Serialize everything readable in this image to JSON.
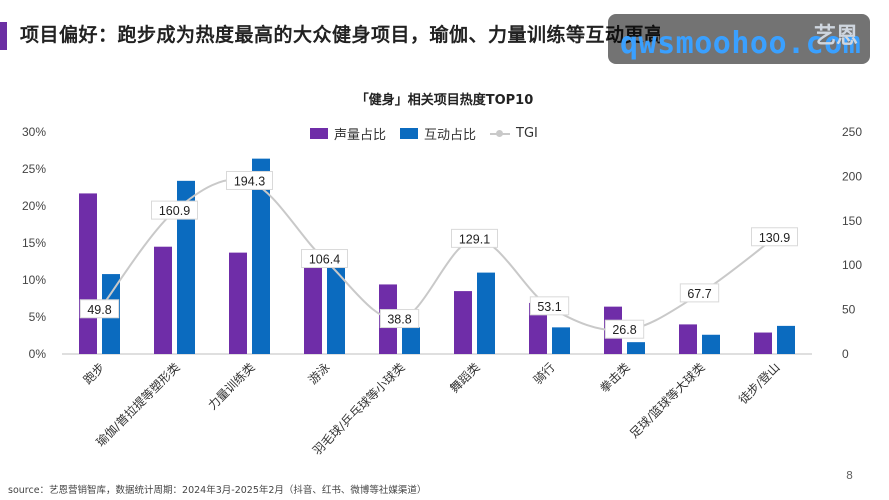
{
  "header": {
    "title": "项目偏好：跑步成为热度最高的大众健身项目，瑜伽、力量训练等互动更高",
    "accent_color": "#6b2fa3",
    "brand_logo": "艺恩",
    "watermark": "qwsmoohoo.com"
  },
  "chart_data": {
    "type": "bar",
    "title": "「健身」相关项目热度TOP10",
    "categories": [
      "跑步",
      "瑜伽/普拉提等塑形类",
      "力量训练类",
      "游泳",
      "羽毛球/乒乓球等小球类",
      "舞蹈类",
      "骑行",
      "拳击类",
      "足球/篮球等大球类",
      "徒步/登山"
    ],
    "series": [
      {
        "name": "声量占比",
        "type": "bar",
        "axis": "left",
        "color": "#6f2da8",
        "values": [
          21.7,
          14.5,
          13.7,
          11.8,
          9.4,
          8.5,
          6.9,
          6.4,
          4.0,
          2.9
        ]
      },
      {
        "name": "互动占比",
        "type": "bar",
        "axis": "left",
        "color": "#0b6bbf",
        "values": [
          10.8,
          23.4,
          26.4,
          11.7,
          3.6,
          11.0,
          3.6,
          1.6,
          2.6,
          3.8
        ]
      },
      {
        "name": "TGI",
        "type": "line",
        "axis": "right",
        "color": "#c9c9c9",
        "values": [
          49.8,
          160.9,
          194.3,
          106.4,
          38.8,
          129.1,
          53.1,
          26.8,
          67.7,
          130.9
        ],
        "labels": [
          "49.8",
          "160.9",
          "194.3",
          "106.4",
          "38.8",
          "129.1",
          "53.1",
          "26.8",
          "67.7",
          "130.9"
        ]
      }
    ],
    "y_left": {
      "min": 0,
      "max": 30,
      "ticks": [
        "0%",
        "5%",
        "10%",
        "15%",
        "20%",
        "25%",
        "30%"
      ]
    },
    "y_right": {
      "min": 0,
      "max": 250,
      "ticks": [
        "0",
        "50",
        "100",
        "150",
        "200",
        "250"
      ]
    },
    "legend": "top"
  },
  "footer": {
    "source": "source：艺恩营销智库，数据统计周期：2024年3月-2025年2月（抖音、红书、微博等社媒渠道）",
    "page_number": "8"
  }
}
